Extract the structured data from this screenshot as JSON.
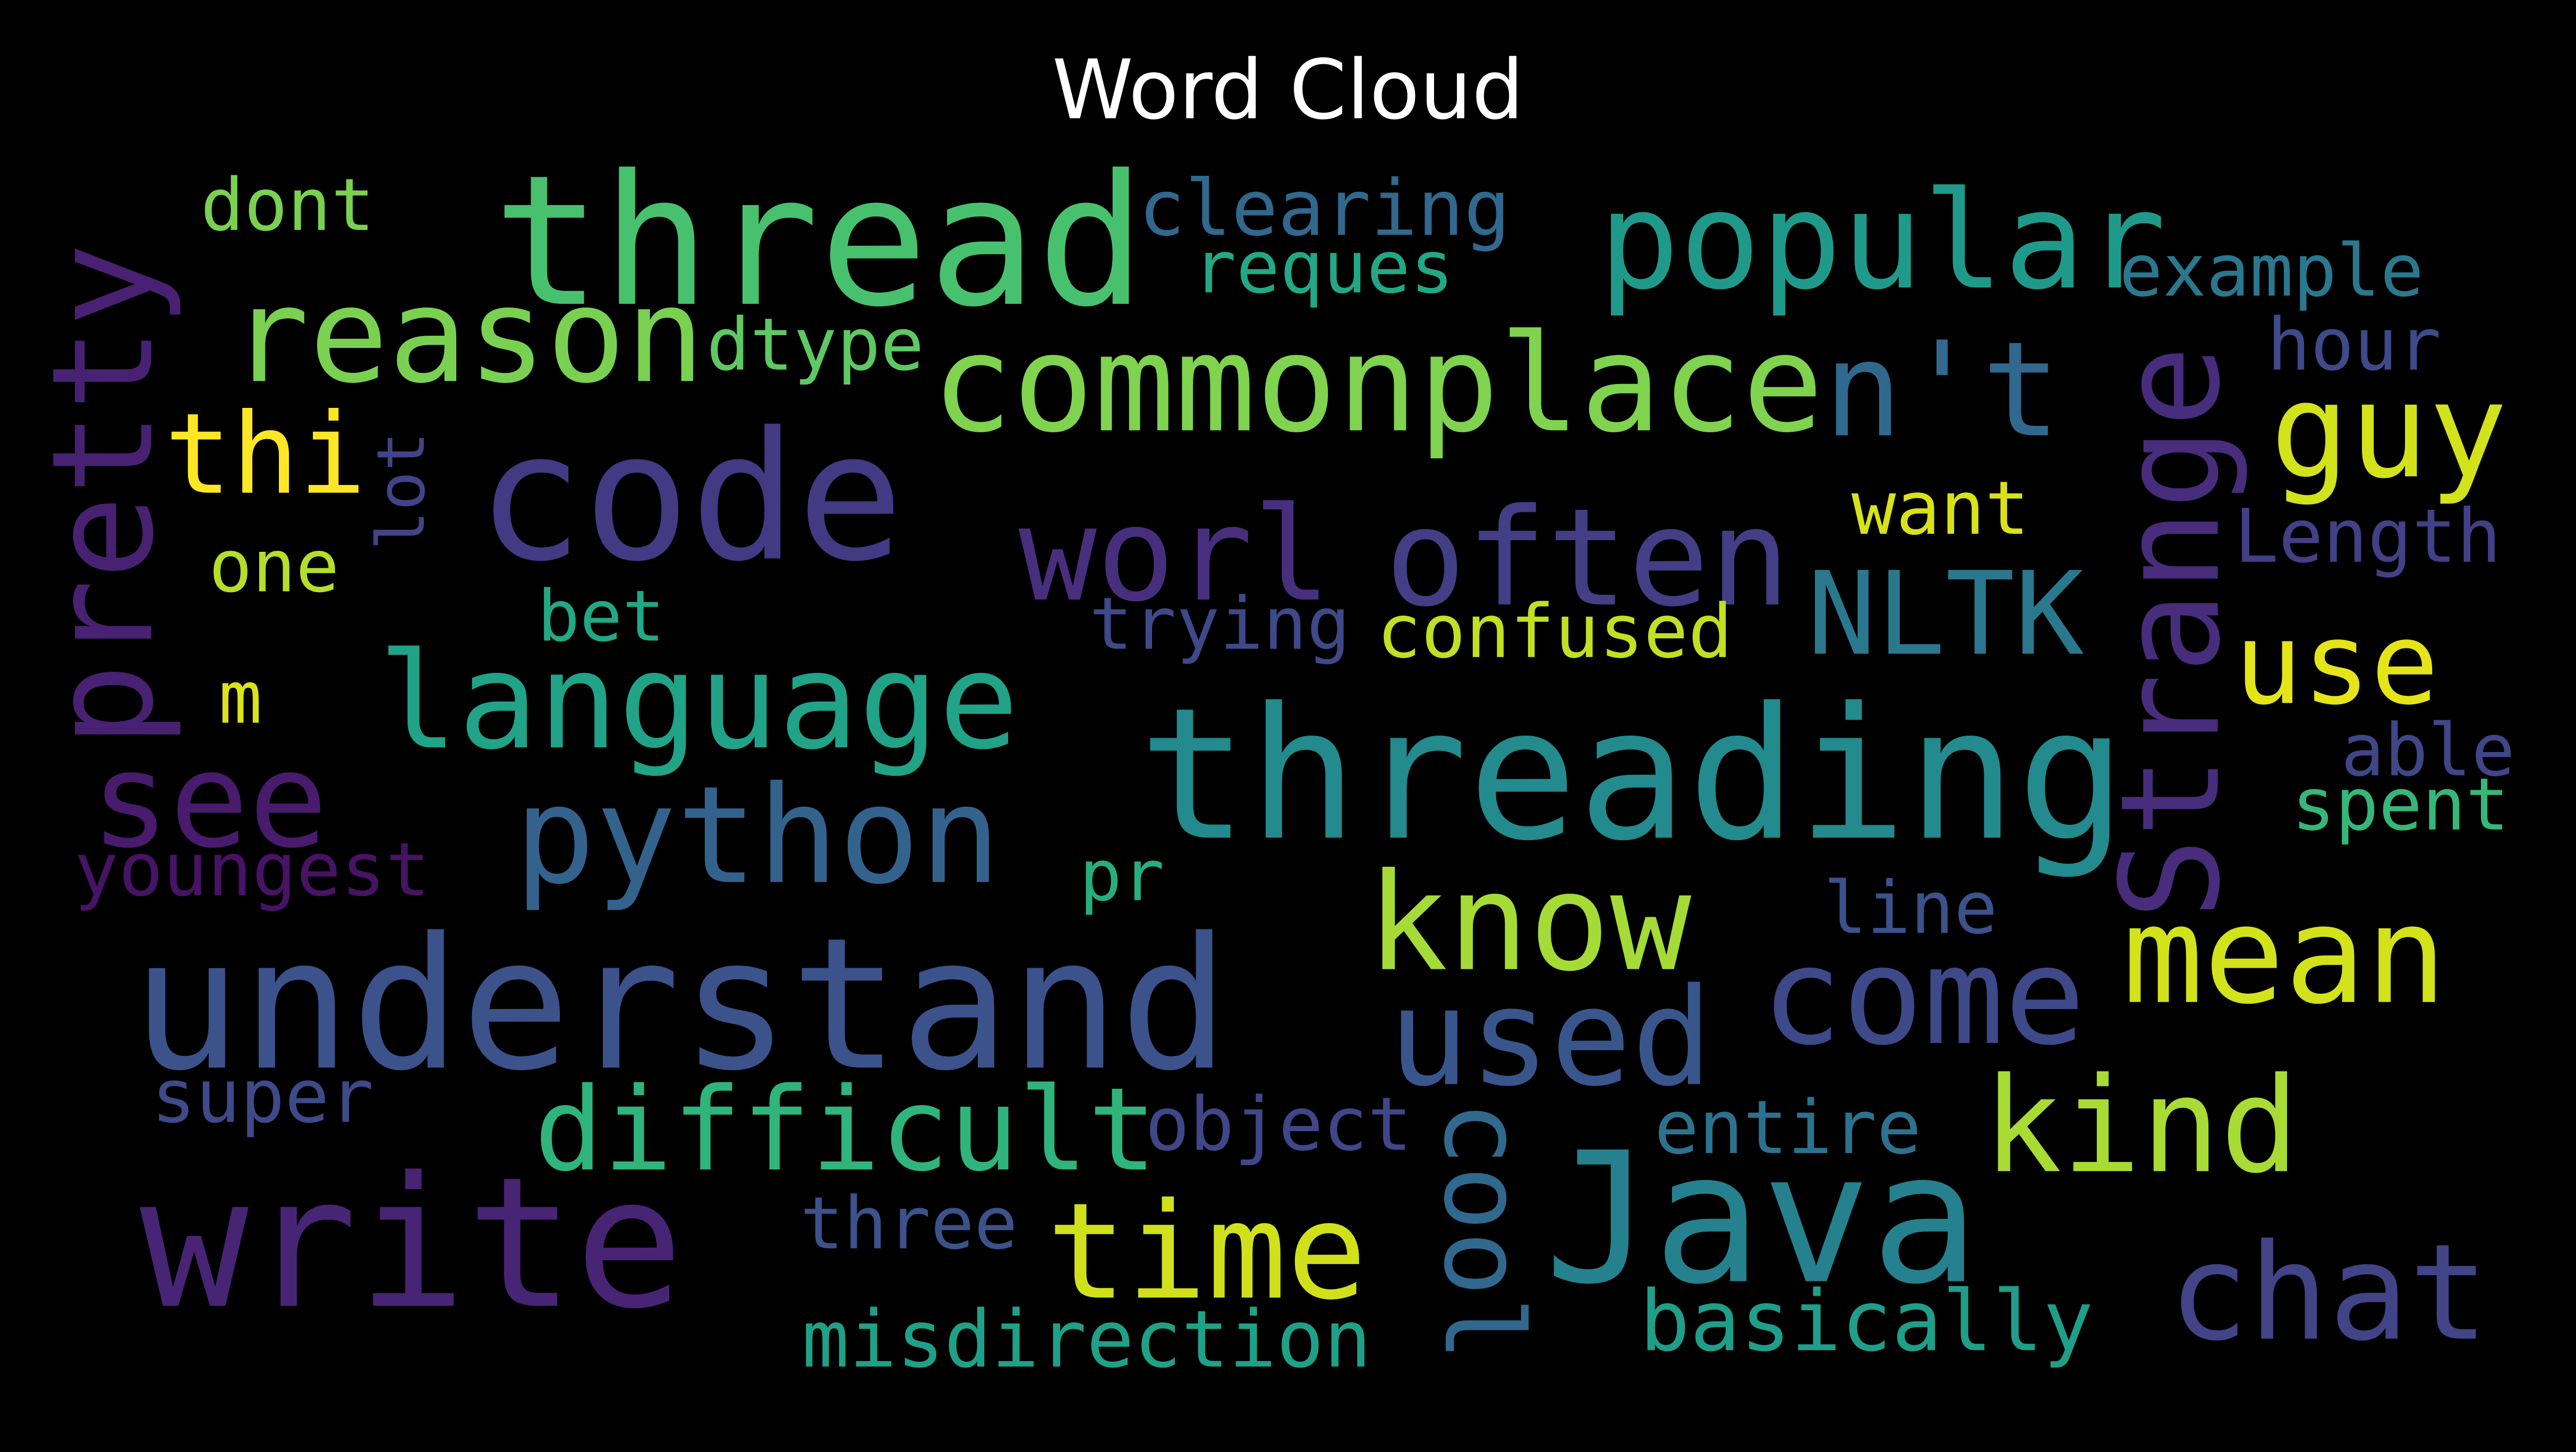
{
  "title": "Word Cloud",
  "words": [
    {
      "text": "thread",
      "color": "#48c16e"
    },
    {
      "text": "clearing",
      "color": "#31688e"
    },
    {
      "text": "dont",
      "color": "#7ad151"
    },
    {
      "text": "popular",
      "color": "#1f9a8a"
    },
    {
      "text": "example",
      "color": "#2a788e"
    },
    {
      "text": "reques",
      "color": "#22a884"
    },
    {
      "text": "reason",
      "color": "#7ad151"
    },
    {
      "text": "dtype",
      "color": "#5ec962"
    },
    {
      "text": "commonplace",
      "color": "#7fd34e"
    },
    {
      "text": "n't",
      "color": "#31688e"
    },
    {
      "text": "hour",
      "color": "#3e4a89"
    },
    {
      "text": "pretty",
      "color": "#482173"
    },
    {
      "text": "Strange",
      "color": "#472d7b"
    },
    {
      "text": "guy",
      "color": "#d2e21b"
    },
    {
      "text": "thi",
      "color": "#fde725"
    },
    {
      "text": "code",
      "color": "#443983"
    },
    {
      "text": "lot",
      "color": "#414487"
    },
    {
      "text": "worl",
      "color": "#472f7d"
    },
    {
      "text": "often",
      "color": "#433e85"
    },
    {
      "text": "want",
      "color": "#d8e219"
    },
    {
      "text": "Length",
      "color": "#424086"
    },
    {
      "text": "one",
      "color": "#b5de2b"
    },
    {
      "text": "NLTK",
      "color": "#2a788e"
    },
    {
      "text": "bet",
      "color": "#22a884"
    },
    {
      "text": "trying",
      "color": "#3e4989"
    },
    {
      "text": "confused",
      "color": "#c2df23"
    },
    {
      "text": "use",
      "color": "#e5e419"
    },
    {
      "text": "m",
      "color": "#dde318"
    },
    {
      "text": "language",
      "color": "#20a386"
    },
    {
      "text": "threading",
      "color": "#238a8d"
    },
    {
      "text": "see",
      "color": "#481b6d"
    },
    {
      "text": "able",
      "color": "#3f4788"
    },
    {
      "text": "spent",
      "color": "#35b779"
    },
    {
      "text": "python",
      "color": "#33638d"
    },
    {
      "text": "youngest",
      "color": "#471365"
    },
    {
      "text": "pr",
      "color": "#27ad81"
    },
    {
      "text": "know",
      "color": "#a5db36"
    },
    {
      "text": "line",
      "color": "#3b528b"
    },
    {
      "text": "mean",
      "color": "#d2e21b"
    },
    {
      "text": "understand",
      "color": "#3b528b"
    },
    {
      "text": "come",
      "color": "#3e4989"
    },
    {
      "text": "used",
      "color": "#39568c"
    },
    {
      "text": "super",
      "color": "#3e4a89"
    },
    {
      "text": "difficult",
      "color": "#2fb47c"
    },
    {
      "text": "object",
      "color": "#3f4788"
    },
    {
      "text": "cool",
      "color": "#31688e"
    },
    {
      "text": "entire",
      "color": "#2c728e"
    },
    {
      "text": "kind",
      "color": "#a8db34"
    },
    {
      "text": "write",
      "color": "#482475"
    },
    {
      "text": "three",
      "color": "#3b528b"
    },
    {
      "text": "time",
      "color": "#d0e11c"
    },
    {
      "text": "Java",
      "color": "#26818e"
    },
    {
      "text": "chat",
      "color": "#414487"
    },
    {
      "text": "basically",
      "color": "#1f9e89"
    },
    {
      "text": "misdirection",
      "color": "#1fa188"
    }
  ]
}
